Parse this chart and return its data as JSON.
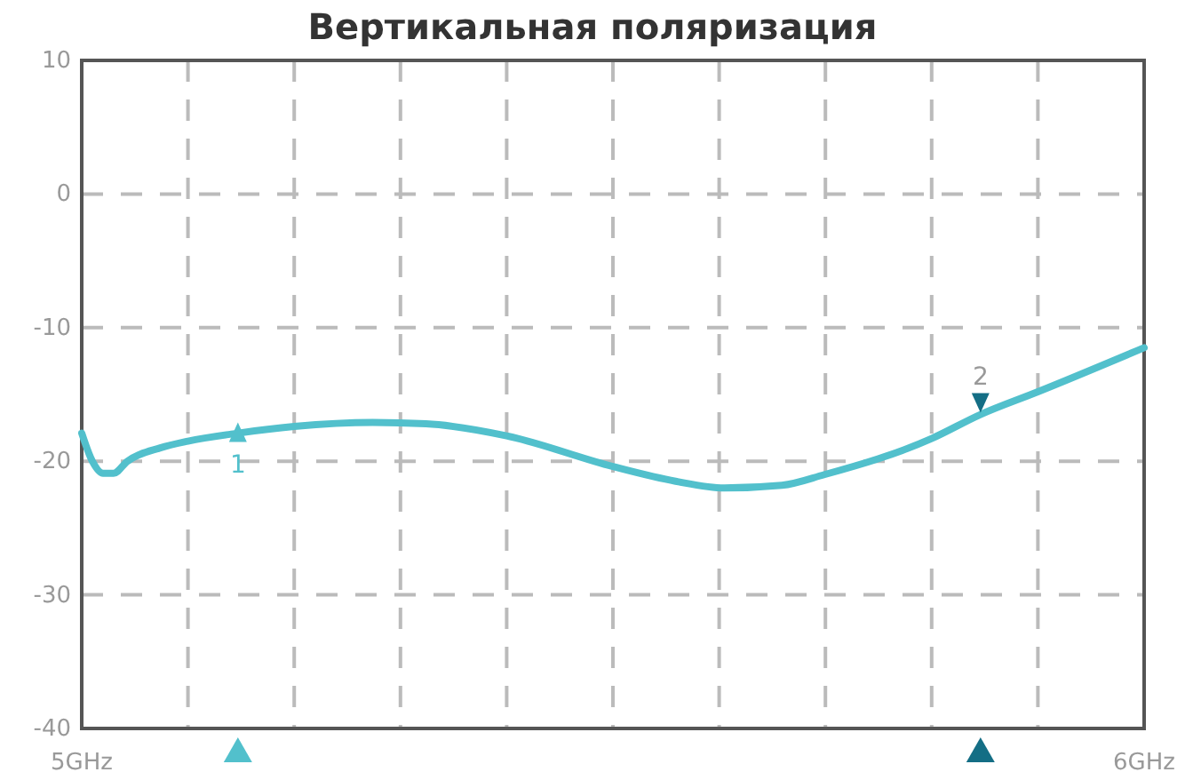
{
  "chart_data": {
    "type": "line",
    "title": "Вертикальная поляризация",
    "series": [
      {
        "color": "#52c0cc",
        "x": [
          5.0,
          5.01,
          5.02,
          5.03,
          5.043,
          5.074,
          5.1,
          5.147,
          5.2,
          5.274,
          5.324,
          5.4,
          5.5,
          5.559,
          5.605,
          5.659,
          5.699,
          5.8,
          5.846,
          5.9,
          6.0
        ],
        "values": [
          -17.9,
          -20.0,
          -20.9,
          -20.9,
          -20.0,
          -19.0,
          -18.5,
          -17.9,
          -17.4,
          -17.1,
          -17.2,
          -18.1,
          -20.4,
          -21.5,
          -22.0,
          -21.8,
          -21.0,
          -18.3,
          -16.5,
          -14.8,
          -11.5
        ]
      }
    ],
    "annotations": [
      {
        "text": "1",
        "x": 5.147,
        "y": -17.9
      },
      {
        "text": "2",
        "x": 5.846,
        "y": -16.5
      }
    ],
    "xlim": [
      5,
      6
    ],
    "xticks": [
      {
        "value": 5,
        "label": "5GHz"
      },
      {
        "value": 5.1,
        "label": null
      },
      {
        "value": 5.2,
        "label": null
      },
      {
        "value": 5.3,
        "label": null
      },
      {
        "value": 5.4,
        "label": null
      },
      {
        "value": 5.5,
        "label": null
      },
      {
        "value": 5.6,
        "label": null
      },
      {
        "value": 5.7,
        "label": null
      },
      {
        "value": 5.8,
        "label": null
      },
      {
        "value": 5.9,
        "label": null
      },
      {
        "value": 6,
        "label": "6GHz"
      }
    ],
    "ylim": [
      -40,
      10
    ],
    "yticks": [
      -40,
      -30,
      -20,
      -10,
      0,
      10
    ],
    "grid": true,
    "marker": "none",
    "line_style": "solid"
  }
}
